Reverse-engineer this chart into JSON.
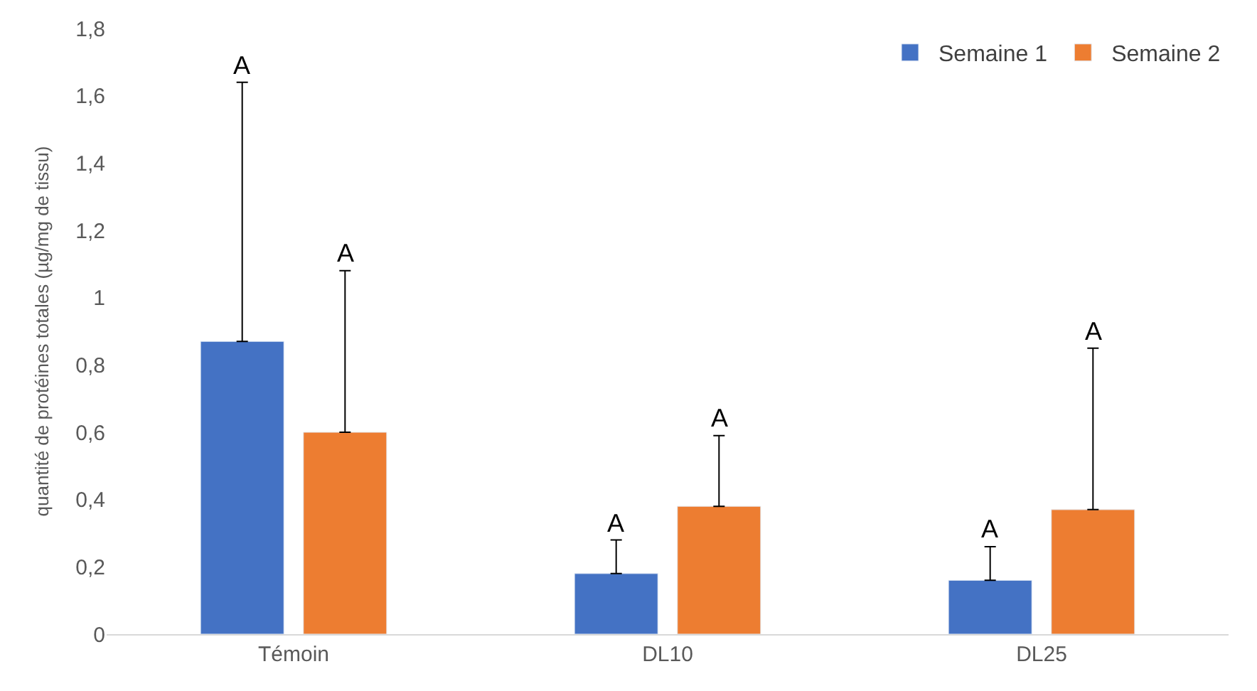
{
  "chart_data": {
    "type": "bar",
    "ylabel": "quantité de protéines totales (µg/mg de tissu)",
    "categories": [
      "Témoin",
      "DL10",
      "DL25"
    ],
    "series": [
      {
        "name": "Semaine 1",
        "color": "#4472c4",
        "values": [
          0.87,
          0.18,
          0.16
        ],
        "errors": [
          [
            0.87,
            1.64
          ],
          [
            0.18,
            0.28
          ],
          [
            0.16,
            0.26
          ]
        ]
      },
      {
        "name": "Semaine 2",
        "color": "#ed7d31",
        "values": [
          0.6,
          0.38,
          0.37
        ],
        "errors": [
          [
            0.6,
            1.08
          ],
          [
            0.38,
            0.59
          ],
          [
            0.37,
            0.85
          ]
        ]
      }
    ],
    "ylim": [
      0,
      1.8
    ],
    "yticks": [
      0,
      {
        "value": 0.2,
        "label": "0,2"
      },
      {
        "value": 0.4,
        "label": "0,4"
      },
      {
        "value": 0.6,
        "label": "0,6"
      },
      {
        "value": 0.8,
        "label": "0,8"
      },
      1,
      {
        "value": 1.2,
        "label": "1,2"
      },
      {
        "value": 1.4,
        "label": "1,4"
      },
      {
        "value": 1.6,
        "label": "1,6"
      },
      {
        "value": 1.8,
        "label": "1,8"
      }
    ],
    "annotations": [
      "A",
      "A",
      "A",
      "A",
      "A",
      "A"
    ],
    "legend": "top right"
  }
}
